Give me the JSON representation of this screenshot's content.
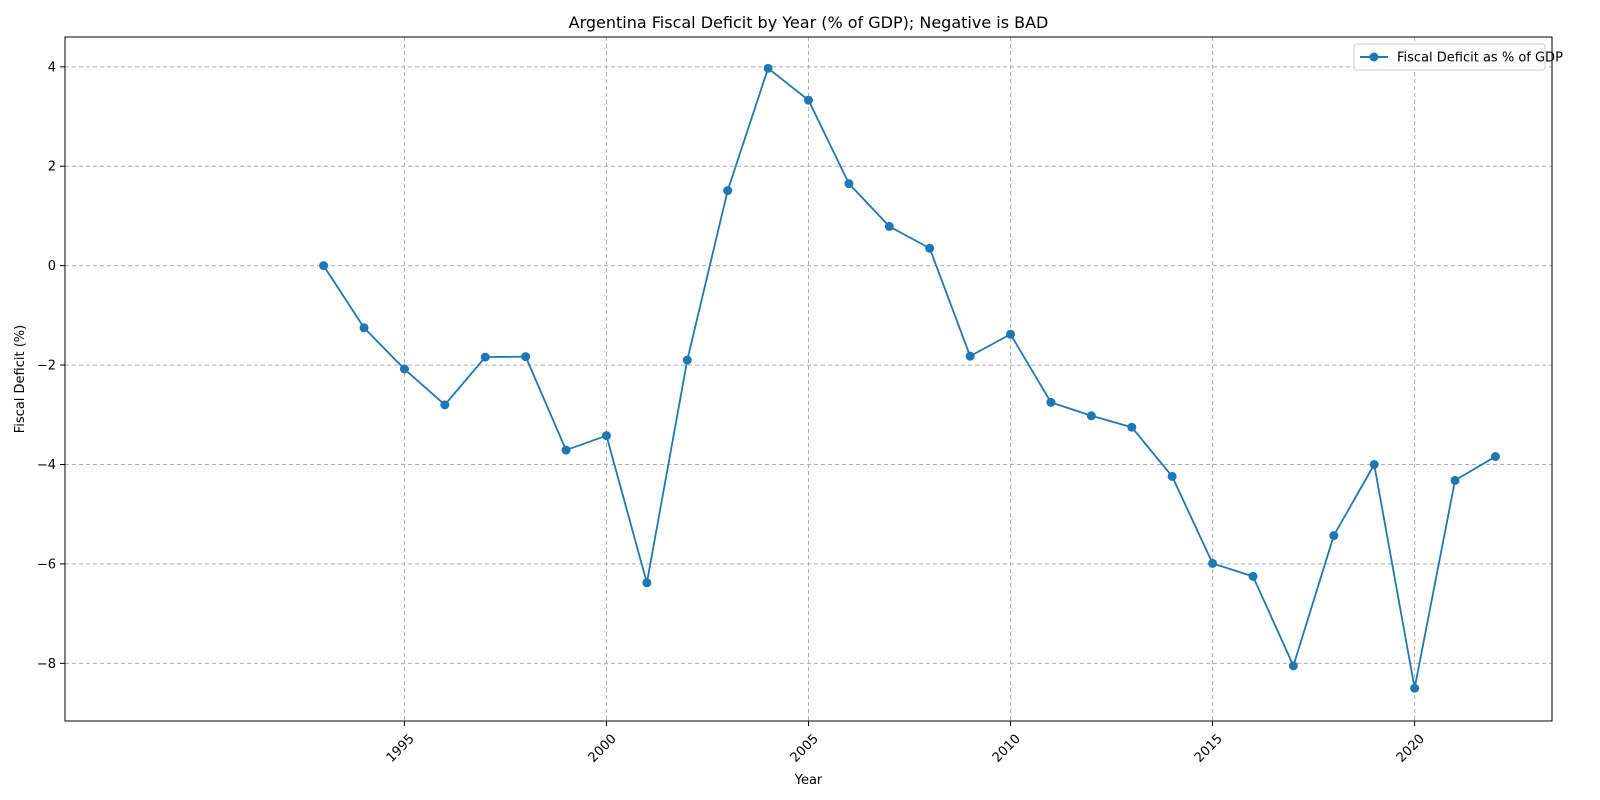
{
  "chart_data": {
    "type": "line",
    "title": "Argentina Fiscal Deficit by Year (% of GDP); Negative is BAD",
    "xlabel": "Year",
    "ylabel": "Fiscal Deficit (%)",
    "xlim": [
      1986.6,
      2023.4
    ],
    "ylim": [
      -9.16,
      4.6
    ],
    "xticks": [
      1995,
      2000,
      2005,
      2010,
      2015,
      2020
    ],
    "yticks": [
      -8,
      -6,
      -4,
      -2,
      0,
      2,
      4
    ],
    "grid": true,
    "grid_style": "dashed",
    "legend_position": "top-right",
    "x_tick_rotation": 45,
    "series": [
      {
        "name": "Fiscal Deficit as % of GDP",
        "color": "#1f77b4",
        "marker": "circle",
        "x": [
          1993,
          1994,
          1995,
          1996,
          1997,
          1998,
          1999,
          2000,
          2001,
          2002,
          2003,
          2004,
          2005,
          2006,
          2007,
          2008,
          2009,
          2010,
          2011,
          2012,
          2013,
          2014,
          2015,
          2016,
          2017,
          2018,
          2019,
          2020,
          2021,
          2022
        ],
        "values": [
          0.0,
          -1.25,
          -2.08,
          -2.8,
          -1.84,
          -1.83,
          -3.71,
          -3.42,
          -6.38,
          -1.9,
          1.51,
          3.97,
          3.33,
          1.65,
          0.79,
          0.35,
          -1.82,
          -1.38,
          -2.75,
          -3.02,
          -3.25,
          -4.24,
          -5.99,
          -6.25,
          -8.05,
          -5.43,
          -4.0,
          -8.5,
          -4.32,
          -3.84
        ]
      }
    ]
  }
}
